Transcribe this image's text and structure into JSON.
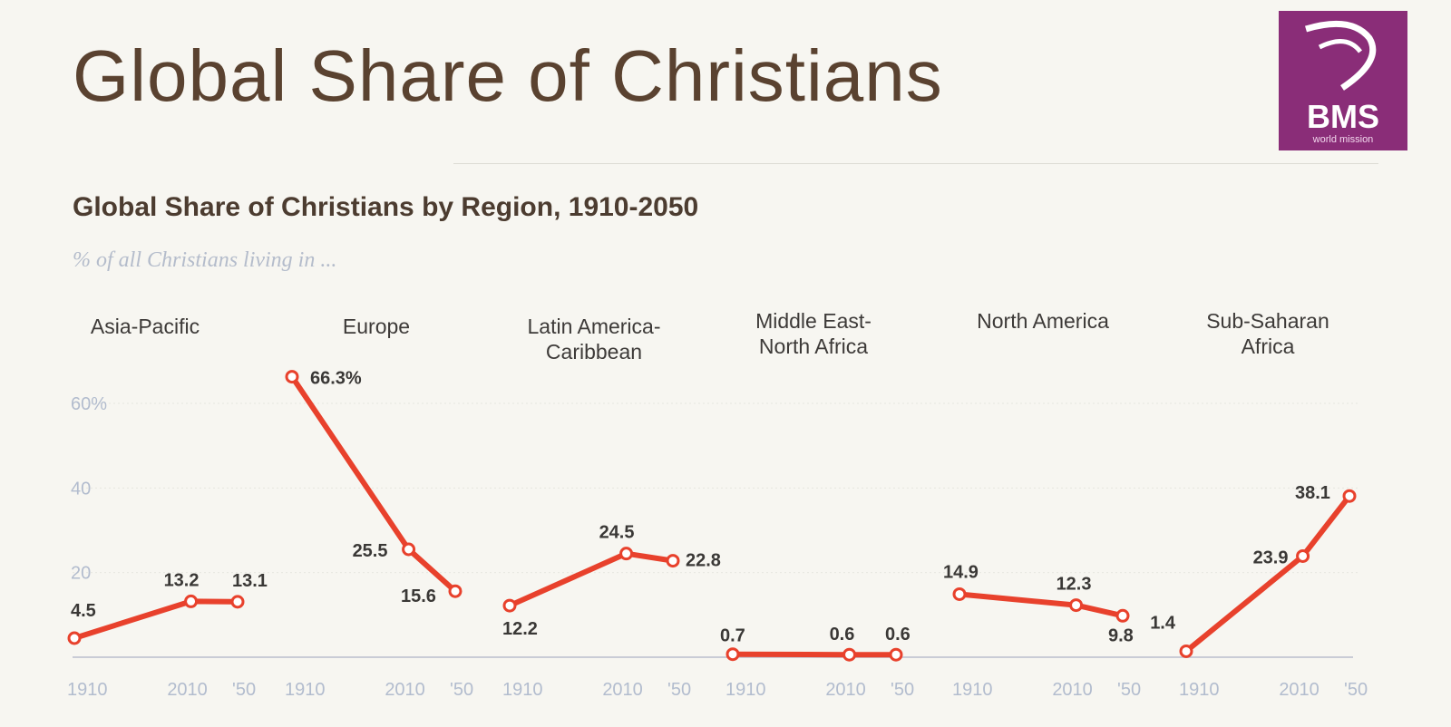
{
  "slide": {
    "title": "Global Share of Christians",
    "logo_text": "BMS",
    "logo_subtext": "world mission"
  },
  "colors": {
    "background": "#f7f6f1",
    "title": "#5a4230",
    "line": "#e8412c",
    "logo": "#8a2d78",
    "axis_text": "#b2bcce"
  },
  "chart_data": {
    "type": "line",
    "title": "Global Share of Christians by Region, 1910-2050",
    "subtitle": "% of all Christians living in ...",
    "ylim": [
      0,
      70
    ],
    "yticks": [
      {
        "value": 60,
        "label": "60%"
      },
      {
        "value": 40,
        "label": "40"
      },
      {
        "value": 20,
        "label": "20"
      }
    ],
    "grid": true,
    "x": [
      1910,
      2010,
      2050
    ],
    "x_tick_labels": [
      "1910",
      "2010",
      "'50"
    ],
    "series": [
      {
        "name": "Asia-Pacific",
        "label_lines": [
          "Asia-Pacific"
        ],
        "values": [
          4.5,
          13.2,
          13.1
        ],
        "value_labels": [
          "4.5",
          "13.2",
          "13.1"
        ]
      },
      {
        "name": "Europe",
        "label_lines": [
          "Europe"
        ],
        "values": [
          66.3,
          25.5,
          15.6
        ],
        "value_labels": [
          "66.3%",
          "25.5",
          "15.6"
        ]
      },
      {
        "name": "Latin America-Caribbean",
        "label_lines": [
          "Latin America-",
          "Caribbean"
        ],
        "values": [
          12.2,
          24.5,
          22.8
        ],
        "value_labels": [
          "12.2",
          "24.5",
          "22.8"
        ]
      },
      {
        "name": "Middle East-North Africa",
        "label_lines": [
          "Middle East-",
          "North Africa"
        ],
        "values": [
          0.7,
          0.6,
          0.6
        ],
        "value_labels": [
          "0.7",
          "0.6",
          "0.6"
        ]
      },
      {
        "name": "North America",
        "label_lines": [
          "North America"
        ],
        "values": [
          14.9,
          12.3,
          9.8
        ],
        "value_labels": [
          "14.9",
          "12.3",
          "9.8"
        ]
      },
      {
        "name": "Sub-Saharan Africa",
        "label_lines": [
          "Sub-Saharan",
          "Africa"
        ],
        "values": [
          1.4,
          23.9,
          38.1
        ],
        "value_labels": [
          "1.4",
          "23.9",
          "38.1"
        ]
      }
    ]
  }
}
